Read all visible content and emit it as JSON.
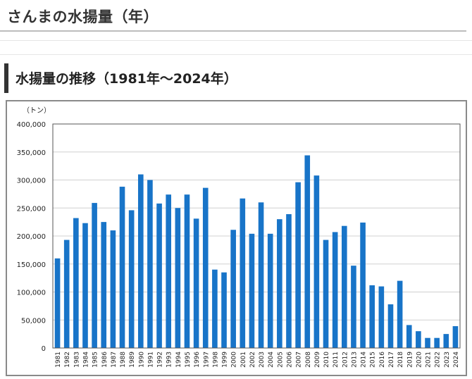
{
  "page": {
    "title": "さんまの水揚量（年）",
    "section_title": "水揚量の推移（1981年〜2024年）"
  },
  "chart_data": {
    "type": "bar",
    "unit_label": "（トン）",
    "ylim": [
      0,
      400000
    ],
    "y_ticks": [
      0,
      50000,
      100000,
      150000,
      200000,
      250000,
      300000,
      350000,
      400000
    ],
    "y_tick_labels": [
      "0",
      "50,000",
      "100,000",
      "150,000",
      "200,000",
      "250,000",
      "300,000",
      "350,000",
      "400,000"
    ],
    "grid": true,
    "bar_color": "#1874c8",
    "categories": [
      "1981",
      "1982",
      "1983",
      "1984",
      "1985",
      "1986",
      "1987",
      "1988",
      "1989",
      "1990",
      "1991",
      "1992",
      "1993",
      "1994",
      "1995",
      "1996",
      "1997",
      "1998",
      "1999",
      "2000",
      "2001",
      "2002",
      "2003",
      "2004",
      "2005",
      "2006",
      "2007",
      "2008",
      "2009",
      "2010",
      "2011",
      "2012",
      "2013",
      "2014",
      "2015",
      "2016",
      "2017",
      "2018",
      "2019",
      "2020",
      "2021",
      "2022",
      "2023",
      "2024"
    ],
    "values": [
      160000,
      193000,
      232000,
      223000,
      259000,
      225000,
      210000,
      288000,
      246000,
      310000,
      300000,
      258000,
      274000,
      250000,
      274000,
      231000,
      286000,
      140000,
      135000,
      211000,
      267000,
      204000,
      260000,
      204000,
      230000,
      239000,
      296000,
      344000,
      308000,
      193000,
      207000,
      218000,
      147000,
      224000,
      112000,
      110000,
      78000,
      120000,
      41000,
      30000,
      18000,
      18000,
      25000,
      39000
    ]
  }
}
